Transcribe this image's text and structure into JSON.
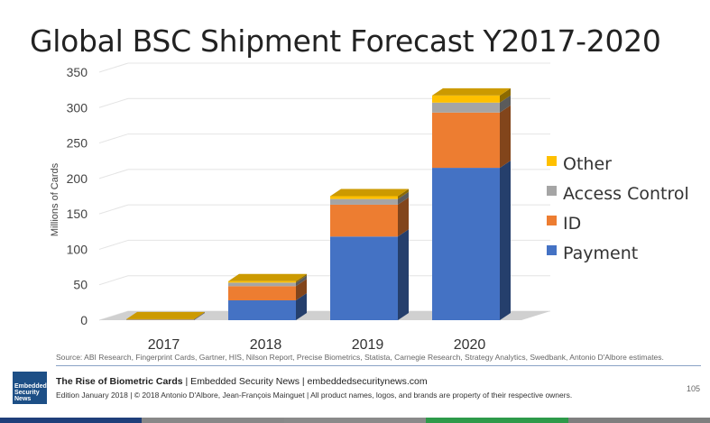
{
  "chart_data": {
    "type": "bar",
    "stacked": true,
    "title": "Global BSC Shipment Forecast Y2017-2020",
    "ylabel": "Millions of Cards",
    "xlabel": "",
    "ylim": [
      0,
      350
    ],
    "yticks": [
      "0",
      "50",
      "100",
      "150",
      "200",
      "250",
      "300",
      "350"
    ],
    "categories": [
      "2017",
      "2018",
      "2019",
      "2020"
    ],
    "series": [
      {
        "name": "Payment",
        "color": "#4472c4",
        "values": [
          0.5,
          28,
          118,
          215
        ]
      },
      {
        "name": "ID",
        "color": "#ed7d31",
        "values": [
          0.3,
          20,
          45,
          78
        ]
      },
      {
        "name": "Access Control",
        "color": "#a5a5a5",
        "values": [
          0.2,
          5,
          8,
          14
        ]
      },
      {
        "name": "Other",
        "color": "#ffc000",
        "values": [
          0.5,
          2,
          4,
          10
        ]
      }
    ],
    "legend_order": [
      "Other",
      "Access Control",
      "ID",
      "Payment"
    ],
    "legend_position": "right",
    "grid": true
  },
  "source_text": "Source: ABI Research, Fingerprint Cards, Gartner, HIS, Nilson Report, Precise Biometrics, Statista, Carnegie Research, Strategy Analytics, Swedbank, Antonio D'Albore estimates.",
  "footer": {
    "logo_lines": [
      "Embedded",
      "Security",
      "News"
    ],
    "title_bold": "The Rise of Biometric Cards",
    "title_rest": " | Embedded Security News | embeddedsecuritynews.com",
    "edition": "Edition January 2018 | © 2018 Antonio D'Albore, Jean-François Mainguet | All product names, logos, and brands are property of their respective owners.",
    "page_number": "105"
  },
  "colors": {
    "bottom_bar": [
      "#1f3f7a",
      "#888888",
      "#8a8a8a",
      "#2e9a4a",
      "#7f7f7f"
    ]
  }
}
